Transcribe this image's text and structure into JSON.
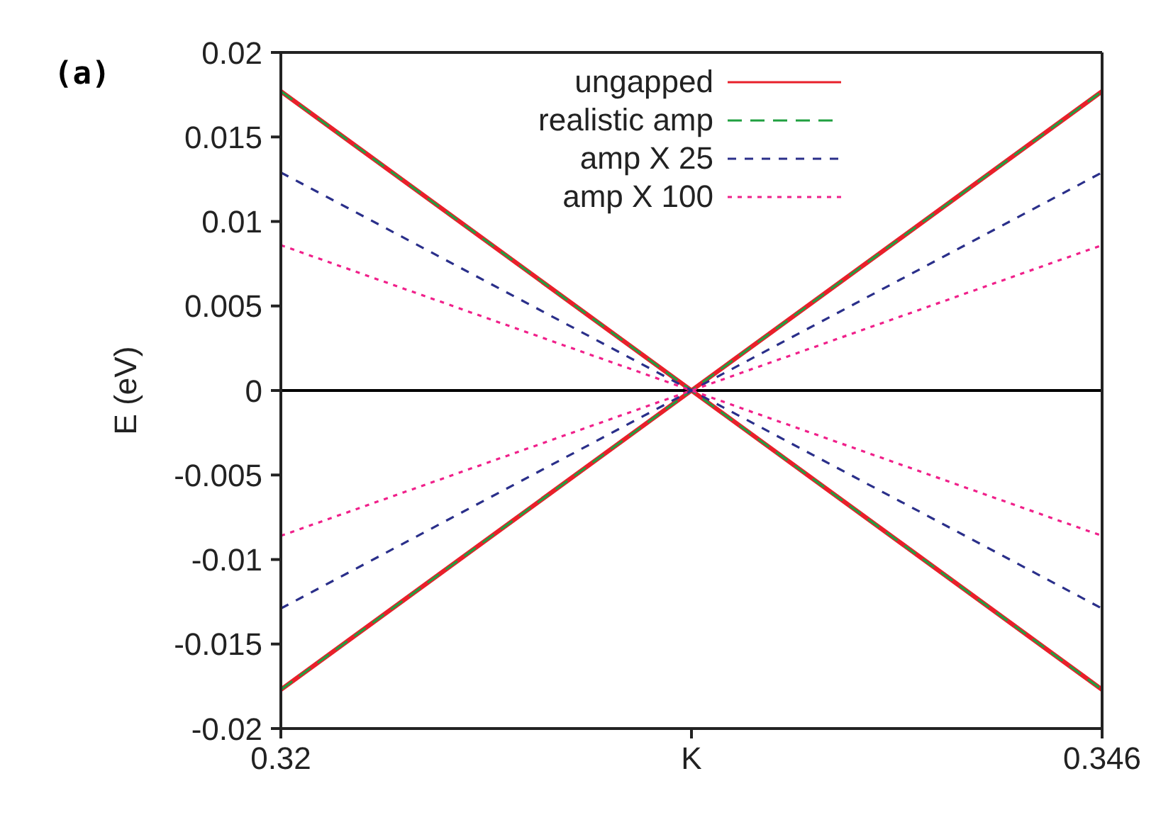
{
  "chart_data": {
    "type": "line",
    "ylabel": "E (eV)",
    "annotations": [
      "(a)"
    ],
    "xlim": [
      0.32,
      0.346
    ],
    "xticks": [
      0.32,
      {
        "value": 0.333,
        "label": "K"
      },
      0.346
    ],
    "ylim": [
      -0.02,
      0.02
    ],
    "yticks": [
      -0.02,
      -0.015,
      -0.01,
      -0.005,
      0,
      0.005,
      0.01,
      0.015,
      0.02
    ],
    "grid": false,
    "legend": "top right",
    "marker": "none",
    "ref_lines": [
      {
        "axis": "y",
        "value": 0,
        "color": "#000000"
      }
    ],
    "series": [
      {
        "name": "ungapped",
        "color": "#e8202a",
        "line_style": "solid",
        "x": [
          0.32,
          0.333,
          0.346
        ],
        "values": [
          0.0177,
          0,
          0.0177
        ]
      },
      {
        "color": "#e8202a",
        "line_style": "solid",
        "x": [
          0.32,
          0.333,
          0.346
        ],
        "values": [
          -0.0177,
          0,
          -0.0177
        ]
      },
      {
        "name": "realistic amp",
        "color": "#20a040",
        "line_style": "dashed",
        "x": [
          0.32,
          0.333,
          0.346
        ],
        "values": [
          0.0177,
          0,
          0.0177
        ]
      },
      {
        "color": "#20a040",
        "line_style": "dashed",
        "x": [
          0.32,
          0.333,
          0.346
        ],
        "values": [
          -0.0177,
          0,
          -0.0177
        ]
      },
      {
        "name": "amp X 25",
        "color": "#2a2f8a",
        "line_style": "dashed",
        "x": [
          0.32,
          0.333,
          0.346
        ],
        "values": [
          0.0129,
          0,
          0.0129
        ]
      },
      {
        "color": "#2a2f8a",
        "line_style": "dashed",
        "x": [
          0.32,
          0.333,
          0.346
        ],
        "values": [
          -0.0129,
          0,
          -0.0129
        ]
      },
      {
        "name": "amp X 100",
        "color": "#f0208a",
        "line_style": "dotted",
        "x": [
          0.32,
          0.333,
          0.346
        ],
        "values": [
          0.0086,
          0,
          0.0086
        ]
      },
      {
        "color": "#f0208a",
        "line_style": "dotted",
        "x": [
          0.32,
          0.333,
          0.346
        ],
        "values": [
          -0.0086,
          0,
          -0.0086
        ]
      }
    ]
  }
}
